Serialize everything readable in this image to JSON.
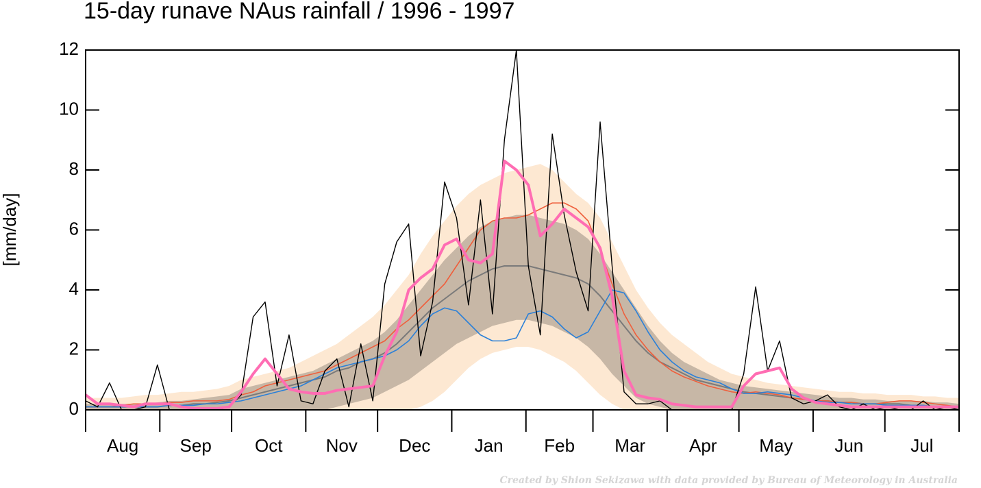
{
  "chart_data": {
    "type": "line",
    "title": "15-day runave NAus rainfall  /  1996 - 1997",
    "ylabel": "[mm/day]",
    "credit": "Created by Shion Sekizawa with data provided by Bureau of Meteorology in Australia",
    "months": [
      "Aug",
      "Sep",
      "Oct",
      "Nov",
      "Dec",
      "Jan",
      "Feb",
      "Mar",
      "Apr",
      "May",
      "Jun",
      "Jul"
    ],
    "xlim": [
      0,
      365
    ],
    "xticks": [
      0,
      31,
      61,
      92,
      122,
      153,
      184,
      212,
      243,
      273,
      304,
      334,
      365
    ],
    "ylim": [
      0,
      12
    ],
    "yticks": [
      0,
      2,
      4,
      6,
      8,
      10,
      12
    ],
    "x": [
      0,
      5,
      10,
      15,
      20,
      25,
      30,
      35,
      40,
      45,
      50,
      55,
      60,
      65,
      70,
      75,
      80,
      85,
      90,
      95,
      100,
      105,
      110,
      115,
      120,
      125,
      130,
      135,
      140,
      145,
      150,
      155,
      160,
      165,
      170,
      175,
      180,
      185,
      190,
      195,
      200,
      205,
      210,
      215,
      220,
      225,
      230,
      235,
      240,
      245,
      250,
      255,
      260,
      265,
      270,
      275,
      280,
      285,
      290,
      295,
      300,
      305,
      310,
      315,
      320,
      325,
      330,
      335,
      340,
      345,
      350,
      355,
      360,
      365
    ],
    "bands": [
      {
        "color": "#fde8d2",
        "lower": [
          0,
          0,
          0,
          0,
          0,
          0,
          0,
          0,
          0,
          0,
          0,
          0,
          0,
          0,
          0,
          0,
          0,
          0,
          0,
          0,
          0,
          0,
          0,
          0,
          0,
          0,
          0,
          0,
          0.1,
          0.3,
          0.6,
          1.0,
          1.4,
          1.7,
          1.9,
          2.0,
          2.1,
          2.1,
          2.0,
          1.8,
          1.6,
          1.3,
          0.9,
          0.5,
          0.2,
          0,
          0,
          0,
          0,
          0,
          0,
          0,
          0,
          0,
          0,
          0,
          0,
          0,
          0,
          0,
          0,
          0,
          0,
          0,
          0,
          0,
          0,
          0,
          0,
          0,
          0,
          0,
          0,
          0
        ],
        "upper": [
          0.4,
          0.4,
          0.4,
          0.4,
          0.45,
          0.5,
          0.5,
          0.55,
          0.6,
          0.6,
          0.65,
          0.7,
          0.8,
          1.0,
          1.1,
          1.2,
          1.3,
          1.4,
          1.6,
          1.8,
          2.0,
          2.2,
          2.5,
          2.8,
          3.1,
          3.5,
          4.0,
          4.5,
          5.2,
          5.8,
          6.3,
          6.8,
          7.2,
          7.5,
          7.7,
          7.9,
          8.0,
          8.1,
          8.2,
          8.0,
          7.6,
          7.2,
          6.9,
          6.4,
          5.6,
          4.8,
          4.0,
          3.4,
          2.9,
          2.5,
          2.2,
          1.9,
          1.6,
          1.4,
          1.2,
          1.1,
          1.0,
          0.9,
          0.85,
          0.8,
          0.75,
          0.7,
          0.65,
          0.6,
          0.6,
          0.55,
          0.55,
          0.5,
          0.5,
          0.5,
          0.45,
          0.45,
          0.4,
          0.4
        ]
      },
      {
        "color": "#c7b7a6",
        "lower": [
          0,
          0,
          0,
          0,
          0,
          0,
          0,
          0,
          0,
          0,
          0,
          0,
          0,
          0,
          0,
          0,
          0,
          0,
          0,
          0,
          0,
          0.1,
          0.2,
          0.3,
          0.4,
          0.6,
          0.8,
          1.0,
          1.3,
          1.6,
          1.9,
          2.2,
          2.4,
          2.6,
          2.8,
          2.9,
          3.0,
          3.0,
          2.9,
          2.8,
          2.6,
          2.4,
          2.1,
          1.7,
          1.2,
          0.8,
          0.4,
          0.2,
          0.1,
          0,
          0,
          0,
          0,
          0,
          0,
          0,
          0,
          0,
          0,
          0,
          0,
          0,
          0,
          0,
          0,
          0,
          0,
          0,
          0,
          0,
          0,
          0,
          0,
          0
        ],
        "upper": [
          0.2,
          0.2,
          0.2,
          0.2,
          0.2,
          0.2,
          0.25,
          0.3,
          0.3,
          0.35,
          0.4,
          0.45,
          0.5,
          0.7,
          0.8,
          0.9,
          1.0,
          1.1,
          1.2,
          1.3,
          1.5,
          1.7,
          1.9,
          2.1,
          2.3,
          2.6,
          3.0,
          3.5,
          4.0,
          4.5,
          5.0,
          5.4,
          5.8,
          6.1,
          6.3,
          6.4,
          6.5,
          6.5,
          6.4,
          6.3,
          6.2,
          6.0,
          5.7,
          5.2,
          4.6,
          4.0,
          3.4,
          2.8,
          2.3,
          1.9,
          1.6,
          1.4,
          1.2,
          1.0,
          0.9,
          0.8,
          0.75,
          0.7,
          0.65,
          0.6,
          0.55,
          0.5,
          0.45,
          0.4,
          0.4,
          0.35,
          0.35,
          0.3,
          0.3,
          0.3,
          0.3,
          0.25,
          0.25,
          0.2
        ]
      }
    ],
    "series": [
      {
        "color": "#7a7a7a",
        "width": 2,
        "values": [
          0.1,
          0.1,
          0.1,
          0.1,
          0.1,
          0.1,
          0.1,
          0.15,
          0.15,
          0.2,
          0.2,
          0.25,
          0.3,
          0.4,
          0.5,
          0.6,
          0.7,
          0.8,
          0.9,
          1.0,
          1.1,
          1.3,
          1.4,
          1.6,
          1.7,
          1.9,
          2.2,
          2.6,
          3.0,
          3.4,
          3.7,
          4.0,
          4.3,
          4.5,
          4.7,
          4.8,
          4.8,
          4.8,
          4.7,
          4.6,
          4.5,
          4.4,
          4.2,
          3.8,
          3.3,
          2.8,
          2.3,
          1.9,
          1.6,
          1.4,
          1.2,
          1.0,
          0.9,
          0.8,
          0.7,
          0.6,
          0.55,
          0.5,
          0.45,
          0.4,
          0.35,
          0.3,
          0.3,
          0.25,
          0.25,
          0.2,
          0.2,
          0.2,
          0.2,
          0.15,
          0.15,
          0.1,
          0.1,
          0.1
        ]
      },
      {
        "color": "#ef5f3c",
        "width": 1.6,
        "values": [
          0.1,
          0.1,
          0.1,
          0.15,
          0.2,
          0.2,
          0.2,
          0.25,
          0.25,
          0.3,
          0.3,
          0.3,
          0.35,
          0.5,
          0.6,
          0.8,
          0.9,
          1.0,
          1.1,
          1.2,
          1.3,
          1.5,
          1.7,
          1.9,
          2.1,
          2.3,
          2.7,
          3.0,
          3.4,
          3.8,
          4.2,
          4.8,
          5.4,
          6.0,
          6.3,
          6.4,
          6.4,
          6.5,
          6.7,
          6.9,
          6.9,
          6.7,
          6.3,
          5.3,
          4.2,
          3.2,
          2.5,
          2.0,
          1.6,
          1.3,
          1.1,
          0.95,
          0.8,
          0.7,
          0.6,
          0.55,
          0.6,
          0.55,
          0.5,
          0.4,
          0.35,
          0.3,
          0.3,
          0.25,
          0.25,
          0.2,
          0.2,
          0.25,
          0.3,
          0.3,
          0.25,
          0.2,
          0.15,
          0.1
        ]
      },
      {
        "color": "#2b80d8",
        "width": 1.6,
        "values": [
          0.1,
          0.1,
          0.1,
          0.1,
          0.1,
          0.1,
          0.1,
          0.15,
          0.15,
          0.15,
          0.2,
          0.2,
          0.25,
          0.3,
          0.4,
          0.5,
          0.6,
          0.7,
          0.8,
          1.0,
          1.2,
          1.4,
          1.5,
          1.6,
          1.7,
          1.8,
          2.0,
          2.3,
          2.8,
          3.2,
          3.4,
          3.3,
          2.9,
          2.5,
          2.3,
          2.3,
          2.4,
          3.2,
          3.3,
          3.1,
          2.7,
          2.4,
          2.6,
          3.3,
          4.0,
          3.9,
          3.3,
          2.6,
          2.0,
          1.6,
          1.3,
          1.1,
          1.0,
          0.9,
          0.7,
          0.55,
          0.55,
          0.6,
          0.55,
          0.5,
          0.4,
          0.3,
          0.25,
          0.25,
          0.2,
          0.2,
          0.2,
          0.15,
          0.15,
          0.15,
          0.15,
          0.1,
          0.1,
          0.1
        ]
      },
      {
        "color": "#000000",
        "width": 1.4,
        "values": [
          0.3,
          0.1,
          0.9,
          0,
          0,
          0.1,
          1.5,
          0,
          0,
          0,
          0,
          0,
          0.1,
          0.5,
          3.1,
          3.6,
          0.8,
          2.5,
          0.3,
          0.2,
          1.3,
          1.7,
          0.1,
          2.2,
          0.3,
          4.2,
          5.6,
          6.2,
          1.8,
          3.6,
          7.6,
          6.4,
          3.5,
          7.0,
          3.2,
          9.0,
          12,
          4.8,
          2.5,
          9.2,
          6.5,
          4.6,
          3.3,
          9.6,
          4.8,
          0.6,
          0.2,
          0.2,
          0.3,
          0,
          0,
          0,
          0,
          0,
          0,
          1.2,
          4.1,
          1.3,
          2.3,
          0.4,
          0.2,
          0.3,
          0.5,
          0.1,
          0,
          0.2,
          0,
          0.1,
          0,
          0,
          0.3,
          0,
          0.1,
          0
        ]
      },
      {
        "color": "#ff6db3",
        "width": 4,
        "values": [
          0.5,
          0.2,
          0.2,
          0.15,
          0.1,
          0.2,
          0.2,
          0.2,
          0.1,
          0.05,
          0.05,
          0.05,
          0.1,
          0.6,
          1.2,
          1.7,
          1.2,
          0.7,
          0.6,
          0.55,
          0.55,
          0.65,
          0.7,
          0.75,
          0.8,
          1.8,
          2.6,
          4.0,
          4.4,
          4.7,
          5.5,
          5.7,
          5.0,
          4.9,
          5.2,
          8.3,
          8.0,
          7.5,
          5.8,
          6.2,
          6.7,
          6.4,
          6.1,
          5.4,
          3.8,
          1.3,
          0.5,
          0.4,
          0.35,
          0.2,
          0.15,
          0.1,
          0.1,
          0.1,
          0.1,
          0.8,
          1.2,
          1.3,
          1.4,
          0.7,
          0.4,
          0.25,
          0.2,
          0.15,
          0.1,
          0.1,
          0.1,
          0.1,
          0.1,
          0.1,
          0.1,
          0.1,
          0.1,
          0.1
        ]
      }
    ]
  }
}
